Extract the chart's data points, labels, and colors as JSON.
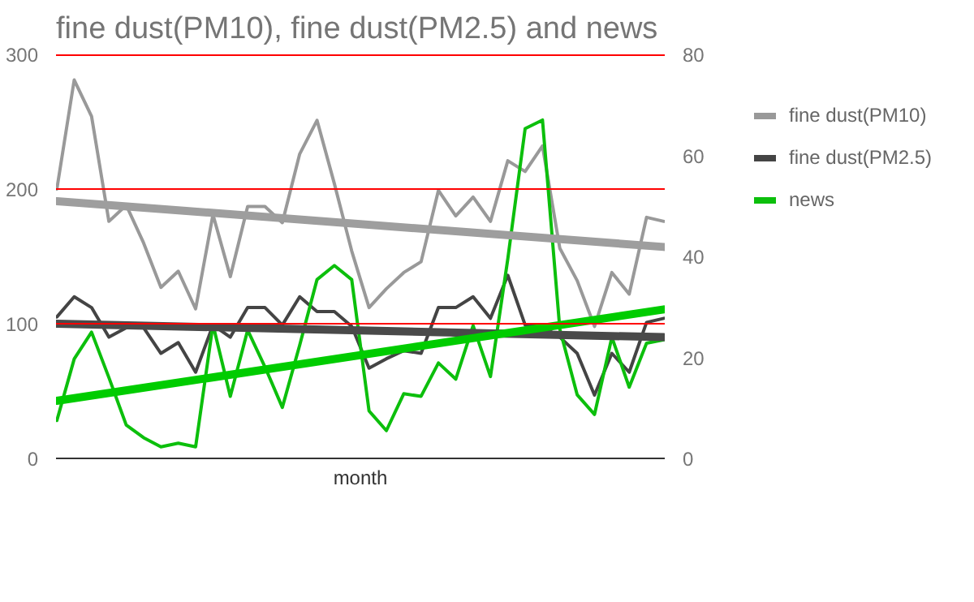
{
  "chart_data": {
    "type": "line",
    "title": "fine dust(PM10), fine dust(PM2.5) and news",
    "xlabel": "month",
    "categories": [
      null,
      null,
      null,
      null,
      null,
      null,
      null,
      null,
      null,
      null,
      null,
      null,
      null,
      null,
      null,
      null,
      null,
      null,
      null,
      null,
      null,
      null,
      null,
      null,
      null,
      null,
      null,
      null,
      null,
      null,
      null,
      null,
      null,
      null,
      null,
      null
    ],
    "series": [
      {
        "name": "fine dust(PM10)",
        "color": "#999999",
        "values": [
          200,
          281,
          254,
          176,
          188,
          160,
          127,
          139,
          111,
          181,
          135,
          187,
          187,
          175,
          226,
          251,
          204,
          154,
          112,
          126,
          138,
          146,
          199,
          180,
          194,
          176,
          221,
          213,
          232,
          156,
          132,
          98,
          138,
          122,
          179,
          176
        ]
      },
      {
        "name": "fine dust(PM2.5)",
        "color": "#444444",
        "values": [
          105,
          120,
          112,
          90,
          97,
          97,
          78,
          86,
          64,
          99,
          90,
          112,
          112,
          99,
          120,
          109,
          109,
          98,
          67,
          74,
          80,
          78,
          112,
          112,
          120,
          104,
          136,
          99,
          98,
          90,
          78,
          47,
          78,
          64,
          101,
          104
        ]
      },
      {
        "name": "news",
        "color": "#0cbf0c",
        "axis": "y2",
        "values": [
          7.5,
          19.7,
          25,
          16,
          6.6,
          4.1,
          2.3,
          3,
          2.3,
          26.5,
          12.3,
          25.4,
          18.1,
          10.1,
          22.4,
          35.4,
          38.2,
          35.4,
          9.4,
          5.5,
          12.8,
          12.3,
          18.9,
          15.7,
          26.3,
          16.2,
          39.5,
          65.3,
          67,
          25.6,
          12.6,
          8.7,
          24,
          14.1,
          22.8,
          23.5
        ]
      },
      {
        "color": "#9e9e9e",
        "values": [
          191,
          null,
          null,
          null,
          null,
          null,
          null,
          null,
          null,
          null,
          null,
          null,
          null,
          null,
          null,
          null,
          null,
          null,
          null,
          null,
          null,
          null,
          null,
          null,
          null,
          null,
          null,
          null,
          null,
          null,
          null,
          null,
          null,
          null,
          null,
          157
        ]
      },
      {
        "color": "#4a4a4a",
        "values": [
          100,
          null,
          null,
          null,
          null,
          null,
          null,
          null,
          null,
          null,
          null,
          null,
          null,
          null,
          null,
          null,
          null,
          null,
          null,
          null,
          null,
          null,
          null,
          null,
          null,
          null,
          null,
          null,
          null,
          null,
          null,
          null,
          null,
          null,
          null,
          90
        ]
      },
      {
        "color": "#00cc00",
        "axis": "y2",
        "values": [
          11.4,
          null,
          null,
          null,
          null,
          null,
          null,
          null,
          null,
          null,
          null,
          null,
          null,
          null,
          null,
          null,
          null,
          null,
          null,
          null,
          null,
          null,
          null,
          null,
          null,
          null,
          null,
          null,
          null,
          null,
          null,
          null,
          null,
          null,
          null,
          29.5
        ]
      }
    ],
    "ylim": [
      0,
      300
    ],
    "yticks": [
      0,
      100,
      200,
      300
    ],
    "y2lim": [
      0,
      80
    ],
    "y2ticks": [
      0,
      20,
      40,
      60,
      80
    ],
    "ref_lines": [
      {
        "axis": "y",
        "value": 100,
        "color": "#ff0000"
      },
      {
        "axis": "y",
        "value": 200,
        "color": "#ff0000"
      },
      {
        "axis": "y",
        "value": 300,
        "color": "#ff0000"
      }
    ],
    "legend": "right",
    "marker": "none",
    "line_style": "solid"
  }
}
